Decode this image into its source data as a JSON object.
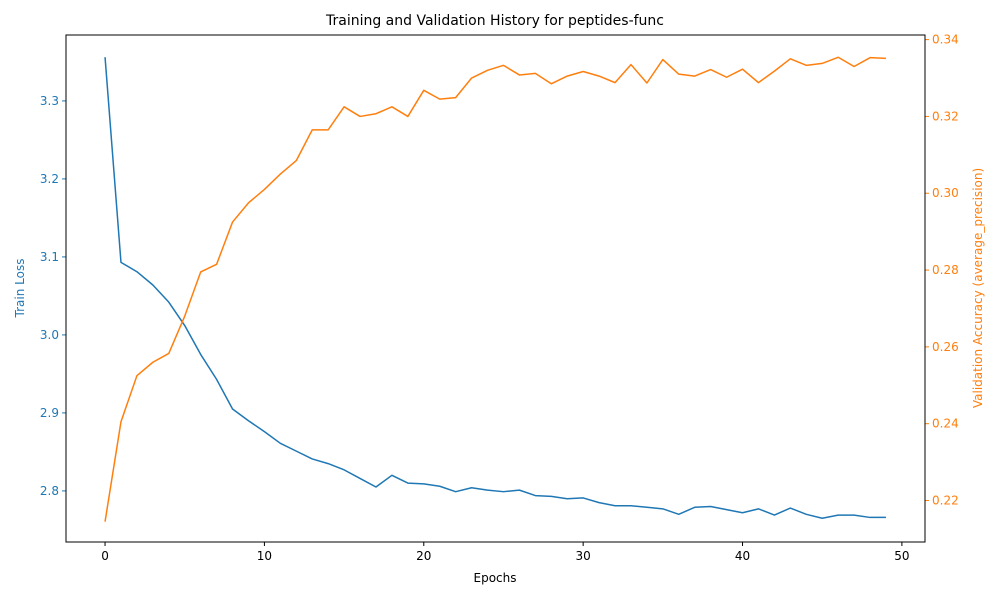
{
  "chart_data": {
    "type": "line",
    "title": "Training and Validation History for peptides-func",
    "xlabel": "Epochs",
    "ylabel_left": "Train Loss",
    "ylabel_right": "Validation Accuracy (average_precision)",
    "xlim": [
      -2.45,
      51.45
    ],
    "ylim_left": [
      2.7345,
      3.3845
    ],
    "ylim_right": [
      0.2092,
      0.3412
    ],
    "x_ticks": [
      0,
      10,
      20,
      30,
      40,
      50
    ],
    "x_tick_labels": [
      "0",
      "10",
      "20",
      "30",
      "40",
      "50"
    ],
    "y_left_ticks": [
      2.8,
      2.9,
      3.0,
      3.1,
      3.2,
      3.3
    ],
    "y_left_tick_labels": [
      "2.8",
      "2.9",
      "3.0",
      "3.1",
      "3.2",
      "3.3"
    ],
    "y_right_ticks": [
      0.22,
      0.24,
      0.26,
      0.28,
      0.3,
      0.32,
      0.34
    ],
    "y_right_tick_labels": [
      "0.22",
      "0.24",
      "0.26",
      "0.28",
      "0.30",
      "0.32",
      "0.34"
    ],
    "grid": false,
    "x": [
      0,
      1,
      2,
      3,
      4,
      5,
      6,
      7,
      8,
      9,
      10,
      11,
      12,
      13,
      14,
      15,
      16,
      17,
      18,
      19,
      20,
      21,
      22,
      23,
      24,
      25,
      26,
      27,
      28,
      29,
      30,
      31,
      32,
      33,
      34,
      35,
      36,
      37,
      38,
      39,
      40,
      41,
      42,
      43,
      44,
      45,
      46,
      47,
      48,
      49
    ],
    "series": [
      {
        "axis": "left",
        "color": "#1f77b4",
        "values": [
          3.356,
          3.093,
          3.081,
          3.064,
          3.042,
          3.012,
          2.975,
          2.943,
          2.905,
          2.89,
          2.876,
          2.861,
          2.851,
          2.841,
          2.835,
          2.827,
          2.816,
          2.805,
          2.82,
          2.81,
          2.809,
          2.806,
          2.799,
          2.804,
          2.801,
          2.799,
          2.801,
          2.794,
          2.793,
          2.79,
          2.791,
          2.785,
          2.781,
          2.781,
          2.779,
          2.777,
          2.77,
          2.779,
          2.78,
          2.776,
          2.772,
          2.777,
          2.769,
          2.778,
          2.77,
          2.765,
          2.769,
          2.769,
          2.766,
          2.766
        ]
      },
      {
        "axis": "right",
        "color": "#ff7f0e",
        "values": [
          0.2145,
          0.2405,
          0.2525,
          0.256,
          0.2583,
          0.268,
          0.2795,
          0.2815,
          0.2925,
          0.2975,
          0.301,
          0.305,
          0.3085,
          0.3165,
          0.3165,
          0.3225,
          0.32,
          0.3207,
          0.3225,
          0.32,
          0.3268,
          0.3245,
          0.3249,
          0.33,
          0.332,
          0.3333,
          0.3308,
          0.3312,
          0.3285,
          0.3305,
          0.3317,
          0.3305,
          0.3288,
          0.3335,
          0.3287,
          0.3348,
          0.331,
          0.3305,
          0.3322,
          0.3302,
          0.3323,
          0.3288,
          0.3318,
          0.335,
          0.3333,
          0.3338,
          0.3354,
          0.333,
          0.3353,
          0.3351
        ]
      }
    ],
    "colors": {
      "left_axis": "#1f77b4",
      "right_axis": "#ff7f0e",
      "frame": "#000000"
    }
  }
}
